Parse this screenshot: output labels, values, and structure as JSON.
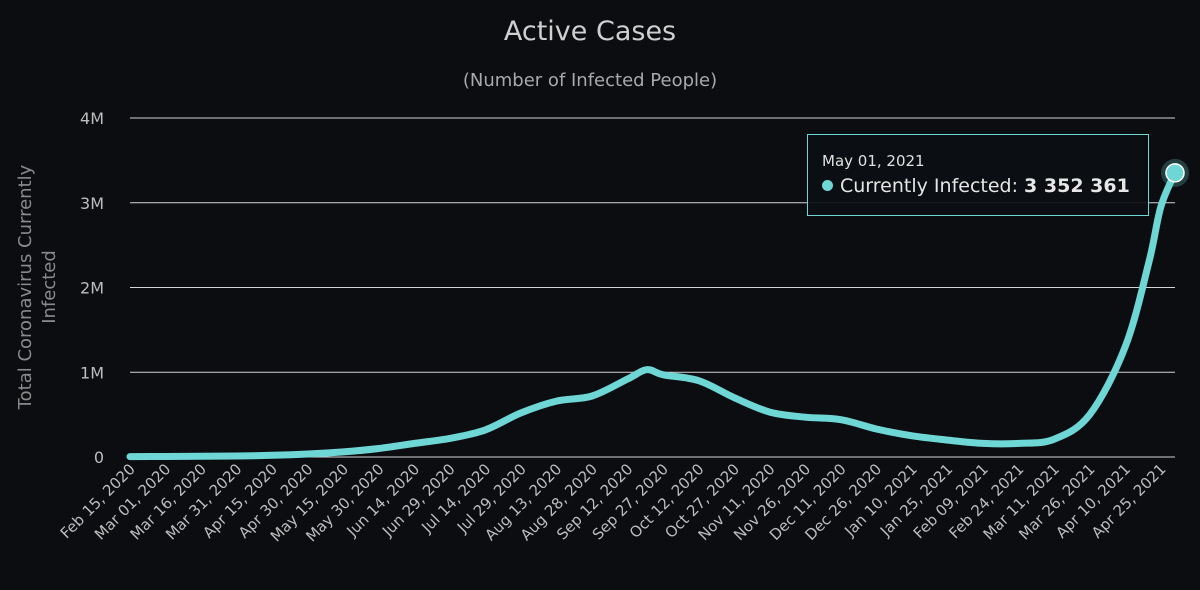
{
  "colors": {
    "background": "#0b0d10",
    "series": "#6fd6d6",
    "grid": "#d4d4d4",
    "text": "#bdbdbd"
  },
  "tooltip": {
    "date": "May 01, 2021",
    "series_name": "Currently Infected",
    "separator": ":",
    "value": "3 352 361"
  },
  "chart_data": {
    "type": "line",
    "title": "Active Cases",
    "subtitle": "(Number of Infected People)",
    "ylabel": "Total Coronavirus Currently Infected",
    "xlabel": "",
    "ylim": [
      0,
      4000000
    ],
    "yticks": [
      0,
      1000000,
      2000000,
      3000000,
      4000000
    ],
    "ytick_labels": [
      "0",
      "1M",
      "2M",
      "3M",
      "4M"
    ],
    "xlim": [
      "2020-02-15",
      "2021-05-01"
    ],
    "xtick_labels": [
      "Feb 15, 2020",
      "Mar 01, 2020",
      "Mar 16, 2020",
      "Mar 31, 2020",
      "Apr 15, 2020",
      "Apr 30, 2020",
      "May 15, 2020",
      "May 30, 2020",
      "Jun 14, 2020",
      "Jun 29, 2020",
      "Jul 14, 2020",
      "Jul 29, 2020",
      "Aug 13, 2020",
      "Aug 28, 2020",
      "Sep 12, 2020",
      "Sep 27, 2020",
      "Oct 12, 2020",
      "Oct 27, 2020",
      "Nov 11, 2020",
      "Nov 26, 2020",
      "Dec 11, 2020",
      "Dec 26, 2020",
      "Jan 10, 2021",
      "Jan 25, 2021",
      "Feb 09, 2021",
      "Feb 24, 2021",
      "Mar 11, 2021",
      "Mar 26, 2021",
      "Apr 10, 2021",
      "Apr 25, 2021"
    ],
    "grid": true,
    "legend": "none",
    "series": [
      {
        "name": "Currently Infected",
        "x": [
          "2020-02-15",
          "2020-03-01",
          "2020-03-16",
          "2020-03-31",
          "2020-04-15",
          "2020-04-30",
          "2020-05-15",
          "2020-05-30",
          "2020-06-14",
          "2020-06-29",
          "2020-07-14",
          "2020-07-29",
          "2020-08-13",
          "2020-08-28",
          "2020-09-12",
          "2020-09-20",
          "2020-09-27",
          "2020-10-12",
          "2020-10-27",
          "2020-11-11",
          "2020-11-26",
          "2020-12-11",
          "2020-12-26",
          "2021-01-10",
          "2021-01-25",
          "2021-02-09",
          "2021-02-24",
          "2021-03-11",
          "2021-03-26",
          "2021-04-10",
          "2021-04-20",
          "2021-04-25",
          "2021-05-01"
        ],
        "y": [
          5000,
          6000,
          8000,
          12000,
          20000,
          35000,
          60000,
          100000,
          160000,
          220000,
          320000,
          520000,
          660000,
          720000,
          920000,
          1030000,
          970000,
          900000,
          700000,
          530000,
          470000,
          440000,
          330000,
          250000,
          200000,
          160000,
          160000,
          210000,
          500000,
          1300000,
          2300000,
          2950000,
          3352361
        ]
      }
    ]
  }
}
